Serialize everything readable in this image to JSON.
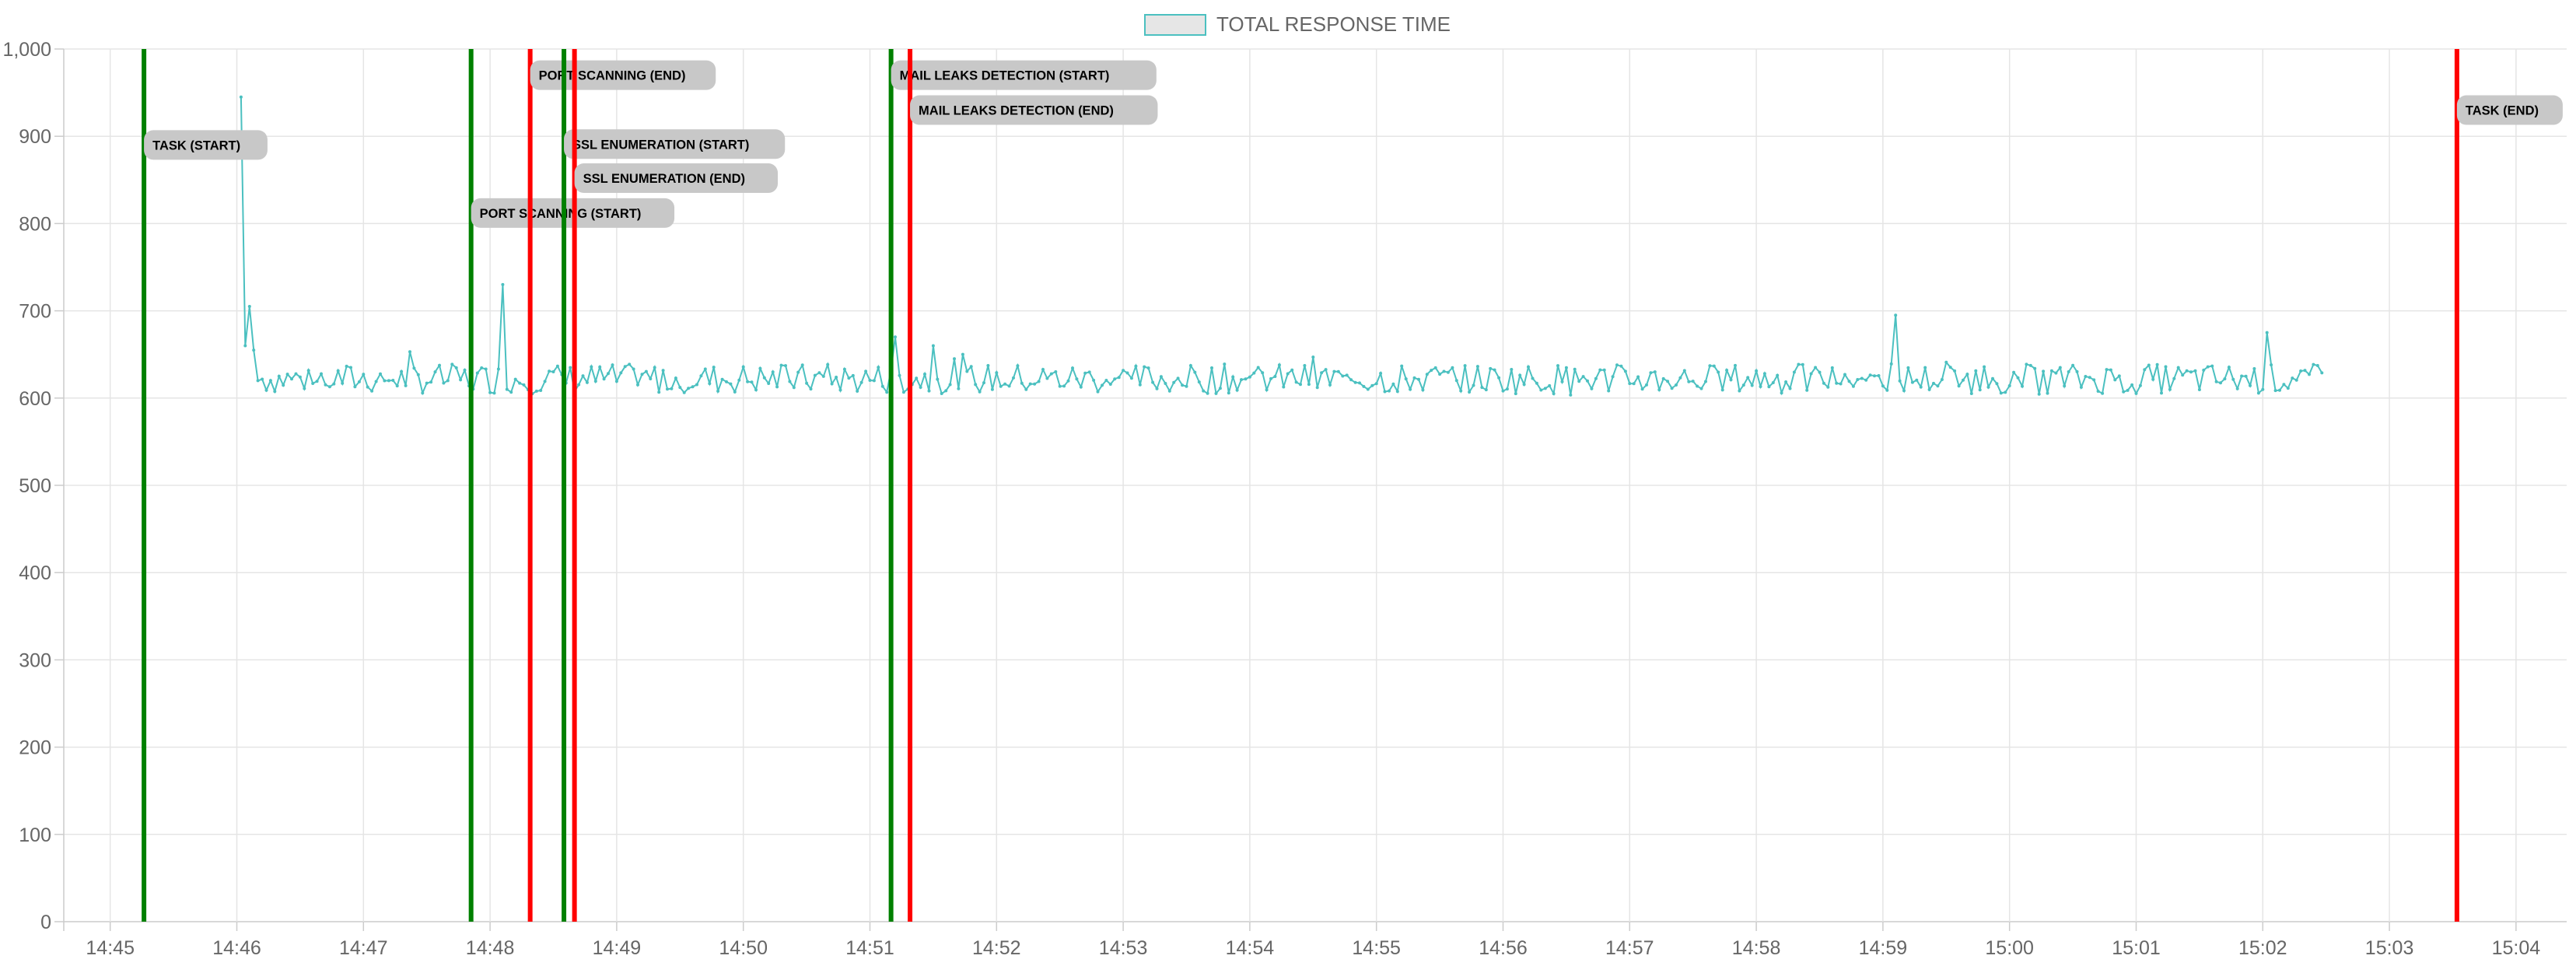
{
  "chart_data": {
    "type": "line",
    "legend": {
      "label": "TOTAL RESPONSE TIME",
      "position": "top"
    },
    "series": [
      {
        "name": "TOTAL RESPONSE TIME",
        "color": "#4bc0c0",
        "baseline_y": 622,
        "start_x": "14:46:02",
        "end_x": "15:02:29",
        "points": [
          {
            "x": "14:46:02",
            "y": 945
          },
          {
            "x": "14:46:04",
            "y": 660
          },
          {
            "x": "14:46:06",
            "y": 705
          },
          {
            "x": "14:46:08",
            "y": 655
          },
          {
            "x": "14:46:10",
            "y": 620
          },
          {
            "x": "14:48:06",
            "y": 730
          },
          {
            "x": "14:51:12",
            "y": 670
          },
          {
            "x": "14:51:30",
            "y": 660
          },
          {
            "x": "14:59:06",
            "y": 695
          },
          {
            "x": "15:02:02",
            "y": 675
          },
          {
            "x": "15:02:29",
            "y": 635
          }
        ]
      }
    ],
    "yaxis": {
      "min": 0,
      "max": 1000,
      "ticks": [
        "0",
        "100",
        "200",
        "300",
        "400",
        "500",
        "600",
        "700",
        "800",
        "900",
        "1,000"
      ]
    },
    "xaxis": {
      "min": "14:44:38",
      "max": "15:04:24",
      "ticks": [
        "14:45",
        "14:46",
        "14:47",
        "14:48",
        "14:49",
        "14:50",
        "14:51",
        "14:52",
        "14:53",
        "14:54",
        "14:55",
        "14:56",
        "14:57",
        "14:58",
        "14:59",
        "15:00",
        "15:01",
        "15:02",
        "15:03",
        "15:04"
      ]
    },
    "grid": true,
    "events": [
      {
        "label": "TASK (START)",
        "x": "14:45:16",
        "kind": "start",
        "label_y": 890
      },
      {
        "label": "PORT SCANNING (START)",
        "x": "14:47:51",
        "kind": "start",
        "label_y": 812
      },
      {
        "label": "PORT SCANNING (END)",
        "x": "14:48:19",
        "kind": "end",
        "label_y": 970
      },
      {
        "label": "SSL ENUMERATION (START)",
        "x": "14:48:35",
        "kind": "start",
        "label_y": 891
      },
      {
        "label": "SSL ENUMERATION (END)",
        "x": "14:48:40",
        "kind": "end",
        "label_y": 852
      },
      {
        "label": "MAIL LEAKS DETECTION (START)",
        "x": "14:51:10",
        "kind": "start",
        "label_y": 970
      },
      {
        "label": "MAIL LEAKS DETECTION (END)",
        "x": "14:51:19",
        "kind": "end",
        "label_y": 930
      },
      {
        "label": "TASK (END)",
        "x": "15:03:32",
        "kind": "end",
        "label_y": 930
      }
    ],
    "colors": {
      "start": "#008000",
      "end": "#ff0000",
      "line": "#4bc0c0",
      "label_bg": "#c8c8c8"
    }
  }
}
